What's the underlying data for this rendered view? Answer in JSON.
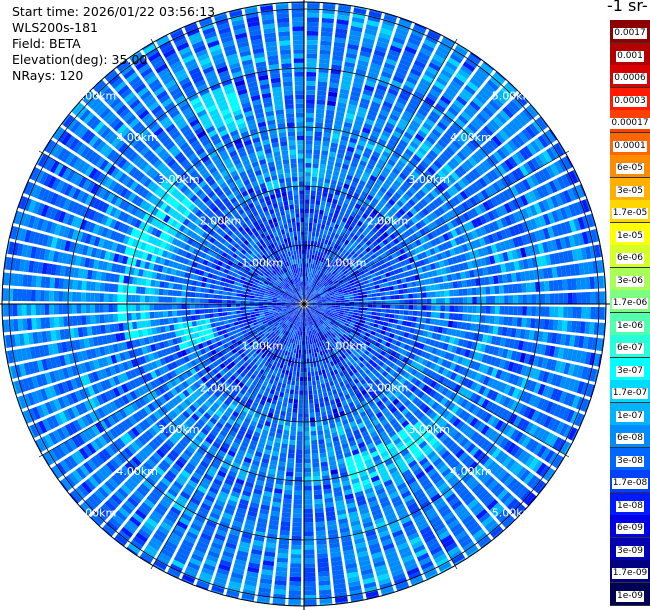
{
  "info": {
    "start_time": "Start time: 2026/01/22 03:56:13",
    "instrument": "WLS200s-181",
    "field": "Field: BETA",
    "elevation": "Elevation(deg): 35.00",
    "nrays": "NRays: 120"
  },
  "colorbar_title": "-1 sr-",
  "chart_data": {
    "type": "heatmap",
    "projection": "polar (PPI scan)",
    "title": "",
    "field": "BETA",
    "elevation_deg": 35.0,
    "n_rays": 120,
    "range_rings_km": [
      1,
      2,
      3,
      4,
      5
    ],
    "range_ring_labels": [
      "1.00km",
      "2.00km",
      "3.00km",
      "4.00km",
      "5.00km"
    ],
    "max_range_km": 5.4,
    "dominant_value": "3e-08 to 1e-07",
    "notable_features": [
      "near-field (< 2 km) dominated by low values ~1e-09 to 1e-08",
      "patches of higher values ~1.7e-07 to 3e-07 at roughly 3 km to the west and north-west",
      "higher-value patch ~1.7e-07 at roughly 3 km south-east"
    ],
    "colorbar": {
      "labels": [
        "0.0017",
        "0.001",
        "0.0006",
        "0.0003",
        "0.00017",
        "0.0001",
        "6e-05",
        "3e-05",
        "1.7e-05",
        "1e-05",
        "6e-06",
        "3e-06",
        "1.7e-06",
        "1e-06",
        "6e-07",
        "3e-07",
        "1.7e-07",
        "1e-07",
        "6e-08",
        "3e-08",
        "1.7e-08",
        "1e-08",
        "6e-09",
        "3e-09",
        "1.7e-09",
        "1e-09"
      ],
      "colors": [
        "#8b0000",
        "#b30000",
        "#d90000",
        "#ff1a00",
        "#ff4000",
        "#ff6600",
        "#ff8c00",
        "#ffb000",
        "#ffd600",
        "#ffff00",
        "#d4ff2b",
        "#a8ff57",
        "#7dff82",
        "#52ffad",
        "#26ffd9",
        "#00ffff",
        "#00d9ff",
        "#00b3ff",
        "#008cff",
        "#0066ff",
        "#0040ff",
        "#001aff",
        "#0000e6",
        "#0000b3",
        "#000080",
        "#000055"
      ]
    }
  }
}
